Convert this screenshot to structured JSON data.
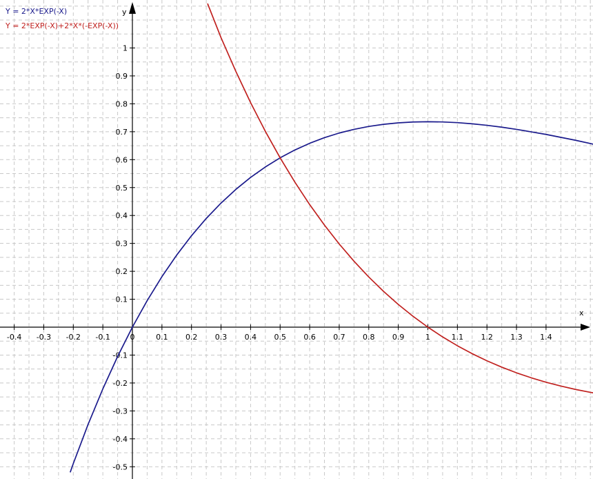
{
  "chart_data": {
    "type": "line",
    "title": "",
    "xlabel": "x",
    "ylabel": "y",
    "xlim": [
      -0.44,
      1.565
    ],
    "ylim": [
      -0.52,
      1.155
    ],
    "grid": true,
    "legend_position": "top-left",
    "x_ticks": [
      -0.4,
      -0.3,
      -0.2,
      -0.1,
      0,
      0.1,
      0.2,
      0.3,
      0.4,
      0.5,
      0.6,
      0.7,
      0.8,
      0.9,
      1,
      1.1,
      1.2,
      1.3,
      1.4
    ],
    "x_tick_labels": [
      "-0.4",
      "-0.3",
      "-0.2",
      "-0.1",
      "0",
      "0.1",
      "0.2",
      "0.3",
      "0.4",
      "0.5",
      "0.6",
      "0.7",
      "0.8",
      "0.9",
      "1",
      "1.1",
      "1.2",
      "1.3",
      "1.4"
    ],
    "y_ticks": [
      1,
      0.9,
      0.8,
      0.7,
      0.6,
      0.5,
      0.4,
      0.3,
      0.2,
      0.1,
      -0.1,
      -0.2,
      -0.3,
      -0.4,
      -0.5
    ],
    "y_tick_labels": [
      "1",
      "0.9",
      "0.8",
      "0.7",
      "0.6",
      "0.5",
      "0.4",
      "0.3",
      "0.2",
      "0.1",
      "-0.1",
      "-0.2",
      "-0.3",
      "-0.4",
      "-0.5"
    ],
    "series": [
      {
        "name": "Y = 2*X*EXP(-X)",
        "color": "#1a1a8c",
        "x": [
          -0.21,
          -0.2,
          -0.15,
          -0.1,
          -0.05,
          0,
          0.05,
          0.1,
          0.15,
          0.2,
          0.25,
          0.3,
          0.35,
          0.4,
          0.45,
          0.5,
          0.55,
          0.6,
          0.65,
          0.7,
          0.75,
          0.8,
          0.85,
          0.9,
          0.95,
          1,
          1.05,
          1.1,
          1.15,
          1.2,
          1.25,
          1.3,
          1.35,
          1.4,
          1.45,
          1.5,
          1.55,
          1.565
        ],
        "y": [
          -0.5184,
          -0.4886,
          -0.3485,
          -0.221,
          -0.1051,
          0,
          0.0951,
          0.181,
          0.2582,
          0.3275,
          0.3894,
          0.4445,
          0.4933,
          0.5363,
          0.5738,
          0.6065,
          0.6346,
          0.6586,
          0.6787,
          0.6953,
          0.7085,
          0.7189,
          0.7265,
          0.7318,
          0.7348,
          0.7358,
          0.735,
          0.7325,
          0.7284,
          0.7229,
          0.7163,
          0.7084,
          0.6995,
          0.6904,
          0.6799,
          0.6694,
          0.6577,
          0.6541
        ]
      },
      {
        "name": "Y = 2*EXP(-X)+2*X*(-EXP(-X))",
        "color": "#c0201e",
        "x": [
          0.255,
          0.3,
          0.35,
          0.4,
          0.45,
          0.5,
          0.55,
          0.6,
          0.65,
          0.7,
          0.75,
          0.8,
          0.85,
          0.9,
          0.95,
          1,
          1.05,
          1.1,
          1.15,
          1.2,
          1.25,
          1.3,
          1.35,
          1.4,
          1.45,
          1.5,
          1.55,
          1.565
        ],
        "y": [
          1.1575,
          1.037,
          0.9164,
          0.8044,
          0.7013,
          0.6065,
          0.5193,
          0.439,
          0.3655,
          0.2979,
          0.2362,
          0.1797,
          0.1282,
          0.0813,
          0.0387,
          0,
          -0.035,
          -0.0666,
          -0.095,
          -0.1205,
          -0.1433,
          -0.1635,
          -0.1814,
          -0.1973,
          -0.2109,
          -0.2231,
          -0.2335,
          -0.2363
        ]
      }
    ]
  }
}
